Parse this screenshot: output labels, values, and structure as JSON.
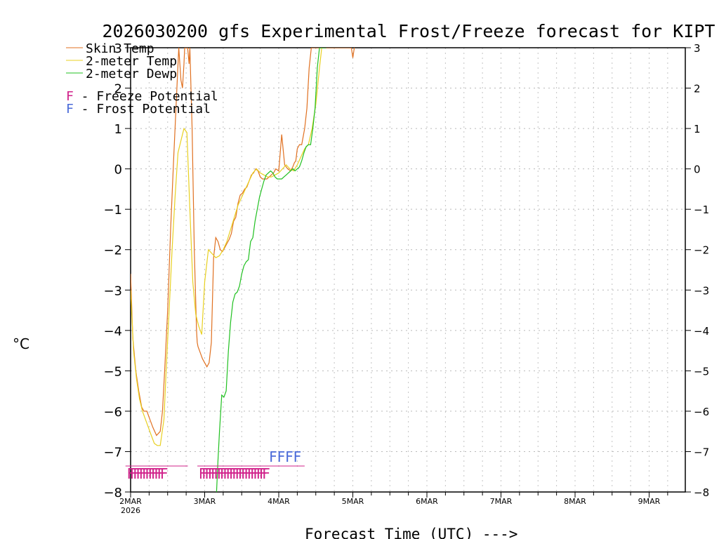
{
  "chart_data": {
    "type": "line",
    "title": "2026030200 gfs Experimental Frost/Freeze forecast for KIPT",
    "xlabel": "Forecast Time (UTC) --->",
    "ylabel": "°C",
    "ylim": [
      -8,
      3
    ],
    "xlim_days": [
      0,
      7.5
    ],
    "y_ticks": [
      -8,
      -7,
      -6,
      -5,
      -4,
      -3,
      -2,
      -1,
      0,
      1,
      2,
      3
    ],
    "x_ticks": [
      {
        "day": 0,
        "label": "2MAR",
        "sub": "2026"
      },
      {
        "day": 1,
        "label": "3MAR",
        "sub": ""
      },
      {
        "day": 2,
        "label": "4MAR",
        "sub": ""
      },
      {
        "day": 3,
        "label": "5MAR",
        "sub": ""
      },
      {
        "day": 4,
        "label": "6MAR",
        "sub": ""
      },
      {
        "day": 5,
        "label": "7MAR",
        "sub": ""
      },
      {
        "day": 6,
        "label": "8MAR",
        "sub": ""
      },
      {
        "day": 7,
        "label": "9MAR",
        "sub": ""
      }
    ],
    "grid": true,
    "series": [
      {
        "name": "Skin Temp",
        "color": "#e07020",
        "x": [
          0,
          0.03,
          0.07,
          0.11,
          0.15,
          0.18,
          0.22,
          0.26,
          0.3,
          0.35,
          0.4,
          0.43,
          0.46,
          0.5,
          0.54,
          0.58,
          0.62,
          0.65,
          0.68,
          0.7,
          0.72,
          0.73,
          0.77,
          0.79,
          0.8,
          0.83,
          0.86,
          0.89,
          0.9,
          0.91,
          0.93,
          0.95,
          0.97,
          1.0,
          1.03,
          1.06,
          1.09,
          1.12,
          1.15,
          1.18,
          1.21,
          1.24,
          1.27,
          1.3,
          1.33,
          1.36,
          1.39,
          1.42,
          1.45,
          1.48,
          1.51,
          1.54,
          1.57,
          1.6,
          1.63,
          1.66,
          1.69,
          1.72,
          1.75,
          1.78,
          1.81,
          1.84,
          1.87,
          1.9,
          1.93,
          1.96,
          2.0,
          2.04,
          2.08,
          2.12,
          2.16,
          2.19,
          2.21,
          2.23,
          2.25,
          2.28,
          2.31,
          2.35,
          2.38,
          2.41,
          2.44,
          2.47,
          2.5,
          2.53,
          2.56,
          2.59,
          2.62,
          2.65,
          2.68,
          2.98,
          3.0,
          3.02
        ],
        "y": [
          -2.6,
          -4.2,
          -5.0,
          -5.5,
          -5.9,
          -6.0,
          -6.0,
          -6.2,
          -6.4,
          -6.6,
          -6.5,
          -6.0,
          -5.0,
          -3.5,
          -1.5,
          0.2,
          1.8,
          3.0,
          2.2,
          2.0,
          2.6,
          3.0,
          3.0,
          2.6,
          3.0,
          1.0,
          -2.0,
          -4.0,
          -4.3,
          -4.4,
          -4.5,
          -4.6,
          -4.7,
          -4.8,
          -4.9,
          -4.8,
          -4.3,
          -2.2,
          -1.7,
          -1.8,
          -2.0,
          -2.05,
          -1.95,
          -1.85,
          -1.75,
          -1.6,
          -1.3,
          -1.2,
          -0.85,
          -0.65,
          -0.6,
          -0.5,
          -0.45,
          -0.3,
          -0.15,
          -0.1,
          0.0,
          -0.05,
          -0.2,
          -0.25,
          -0.25,
          -0.25,
          -0.2,
          -0.15,
          -0.1,
          0.0,
          -0.05,
          0.85,
          0.1,
          0.0,
          -0.05,
          0.05,
          0.15,
          0.2,
          0.5,
          0.6,
          0.6,
          1.0,
          1.5,
          2.5,
          3.0,
          3.0,
          3.0,
          3.0,
          3.0,
          3.0,
          3.0,
          3.0,
          3.0,
          3.0,
          2.75,
          3.0
        ]
      },
      {
        "name": "2-meter Temp",
        "color": "#e8d020",
        "x": [
          0,
          0.04,
          0.08,
          0.12,
          0.16,
          0.2,
          0.24,
          0.28,
          0.32,
          0.36,
          0.4,
          0.45,
          0.48,
          0.52,
          0.56,
          0.6,
          0.64,
          0.68,
          0.72,
          0.76,
          0.8,
          0.84,
          0.88,
          0.92,
          0.96,
          1.0,
          1.05,
          1.1,
          1.15,
          1.2,
          1.25,
          1.3,
          1.35,
          1.4,
          1.45,
          1.5,
          1.55,
          1.6,
          1.65,
          1.7,
          1.75,
          1.8,
          1.85,
          1.9,
          1.95,
          2.0,
          2.05,
          2.1,
          2.15,
          2.2,
          2.25,
          2.3,
          2.35,
          2.4,
          2.45,
          2.5,
          2.55,
          2.58
        ],
        "y": [
          -3.0,
          -4.5,
          -5.2,
          -5.7,
          -6.0,
          -6.2,
          -6.4,
          -6.6,
          -6.8,
          -6.85,
          -6.85,
          -6.2,
          -5.0,
          -3.5,
          -2.0,
          -0.7,
          0.4,
          0.7,
          1.0,
          0.9,
          -1.0,
          -2.8,
          -3.6,
          -3.9,
          -4.1,
          -2.8,
          -2.0,
          -2.1,
          -2.2,
          -2.15,
          -2.0,
          -1.8,
          -1.5,
          -1.2,
          -0.9,
          -0.7,
          -0.5,
          -0.3,
          -0.1,
          0.0,
          -0.1,
          -0.15,
          -0.2,
          -0.2,
          -0.15,
          -0.1,
          0.0,
          0.1,
          0.0,
          -0.05,
          0.1,
          0.3,
          0.5,
          0.6,
          1.0,
          1.6,
          2.5,
          3.0
        ]
      },
      {
        "name": "2-meter Dewp",
        "color": "#20c020",
        "x": [
          1.16,
          1.18,
          1.2,
          1.23,
          1.26,
          1.29,
          1.32,
          1.35,
          1.38,
          1.41,
          1.44,
          1.47,
          1.5,
          1.53,
          1.56,
          1.59,
          1.62,
          1.65,
          1.68,
          1.71,
          1.74,
          1.77,
          1.8,
          1.83,
          1.86,
          1.89,
          1.92,
          1.95,
          1.98,
          2.01,
          2.04,
          2.07,
          2.1,
          2.13,
          2.16,
          2.19,
          2.22,
          2.25,
          2.28,
          2.31,
          2.34,
          2.37,
          2.4,
          2.43,
          2.46,
          2.49,
          2.52,
          2.55,
          2.58,
          2.61,
          2.64
        ],
        "y": [
          -8.0,
          -7.2,
          -6.5,
          -5.6,
          -5.65,
          -5.5,
          -4.5,
          -3.8,
          -3.3,
          -3.1,
          -3.05,
          -2.9,
          -2.6,
          -2.4,
          -2.3,
          -2.25,
          -1.8,
          -1.7,
          -1.3,
          -1.0,
          -0.7,
          -0.5,
          -0.3,
          -0.15,
          -0.1,
          -0.05,
          -0.1,
          -0.2,
          -0.25,
          -0.25,
          -0.25,
          -0.2,
          -0.15,
          -0.1,
          -0.05,
          0.0,
          -0.05,
          0.0,
          0.05,
          0.2,
          0.4,
          0.55,
          0.6,
          0.6,
          1.0,
          1.5,
          2.5,
          3.0,
          3.0,
          3.0,
          3.0
        ]
      }
    ],
    "legend": {
      "placement": "top-left",
      "entries": [
        {
          "label": "Skin Temp",
          "color": "#e07020"
        },
        {
          "label": "2-meter Temp",
          "color": "#e8d020"
        },
        {
          "label": "2-meter Dewp",
          "color": "#20c020"
        }
      ],
      "notes": [
        {
          "marker": "F",
          "marker_color": "#d0208a",
          "text": " - Freeze Potential"
        },
        {
          "marker": "F",
          "marker_color": "#4a6ad8",
          "text": " - Frost Potential"
        }
      ]
    },
    "annotations": {
      "freeze_run_1": {
        "text": "FFFFFFFFFFFF",
        "color": "#d0208a",
        "start_day": -0.05
      },
      "freeze_run_2": {
        "text": "FFFFFFFFFFFFFFFFFFFFFF",
        "color": "#d0208a",
        "start_day": 0.92
      },
      "frost_run": {
        "text": "FFFF",
        "color": "#4a6ad8",
        "start_day": 1.87
      }
    }
  }
}
